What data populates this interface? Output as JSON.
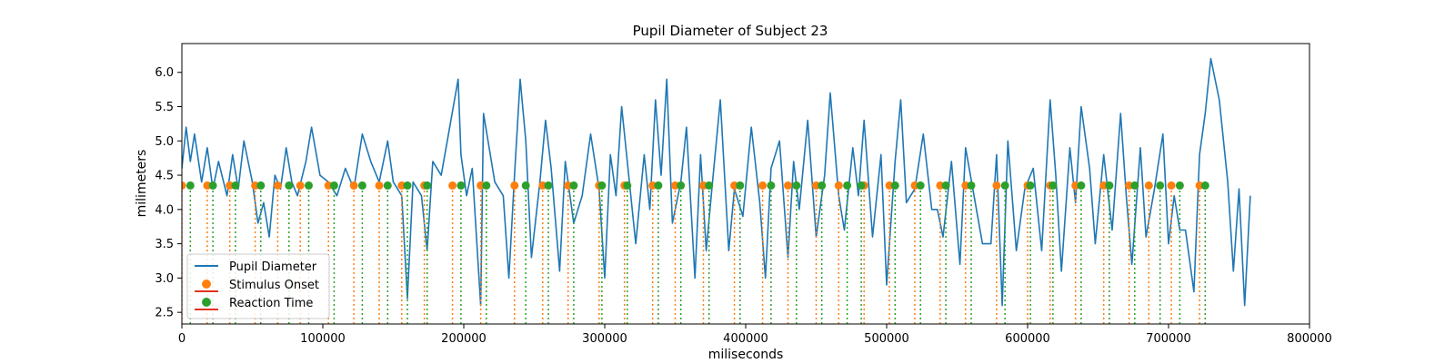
{
  "chart_data": {
    "type": "line",
    "title": "Pupil Diameter of Subject 23",
    "xlabel": "miliseconds",
    "ylabel": "milimeters",
    "xlim": [
      0,
      800000
    ],
    "ylim": [
      2.33,
      6.42
    ],
    "x_ticks": [
      0,
      100000,
      200000,
      300000,
      400000,
      500000,
      600000,
      700000,
      800000
    ],
    "x_tick_labels": [
      "0",
      "100000",
      "200000",
      "300000",
      "400000",
      "500000",
      "600000",
      "700000",
      "800000"
    ],
    "y_ticks": [
      2.5,
      3.0,
      3.5,
      4.0,
      4.5,
      5.0,
      5.5,
      6.0
    ],
    "y_tick_labels": [
      "2.5",
      "3.0",
      "3.5",
      "4.0",
      "4.5",
      "5.0",
      "5.5",
      "6.0"
    ],
    "grid": false,
    "legend": "lower-left",
    "marker_level": 4.35,
    "series": [
      {
        "name": "Pupil Diameter",
        "color": "#1f77b4",
        "x": [
          0,
          3000,
          6000,
          9000,
          14000,
          18000,
          22000,
          26000,
          32000,
          36000,
          40000,
          44000,
          50000,
          54000,
          58000,
          62000,
          66000,
          70000,
          74000,
          78000,
          82000,
          88000,
          92000,
          98000,
          104000,
          110000,
          116000,
          122000,
          128000,
          134000,
          140000,
          146000,
          150000,
          156000,
          160000,
          164000,
          170000,
          174000,
          178000,
          184000,
          190000,
          196000,
          198000,
          202000,
          206000,
          212000,
          214000,
          218000,
          222000,
          228000,
          232000,
          236000,
          240000,
          244000,
          248000,
          254000,
          258000,
          262000,
          268000,
          272000,
          278000,
          284000,
          290000,
          296000,
          300000,
          304000,
          308000,
          312000,
          318000,
          322000,
          328000,
          332000,
          336000,
          340000,
          344000,
          348000,
          354000,
          358000,
          364000,
          368000,
          372000,
          376000,
          382000,
          388000,
          392000,
          398000,
          404000,
          410000,
          414000,
          418000,
          424000,
          430000,
          434000,
          438000,
          444000,
          450000,
          456000,
          460000,
          466000,
          470000,
          476000,
          480000,
          484000,
          490000,
          496000,
          500000,
          506000,
          510000,
          514000,
          520000,
          526000,
          532000,
          536000,
          540000,
          546000,
          552000,
          556000,
          562000,
          568000,
          574000,
          578000,
          582000,
          586000,
          592000,
          598000,
          604000,
          610000,
          616000,
          620000,
          624000,
          630000,
          634000,
          638000,
          644000,
          648000,
          654000,
          660000,
          666000,
          670000,
          674000,
          680000,
          684000,
          690000,
          696000,
          700000,
          704000,
          708000,
          712000,
          718000,
          722000,
          726000,
          730000,
          736000,
          742000,
          746000,
          750000,
          754000,
          758000
        ],
        "values": [
          4.6,
          5.2,
          4.7,
          5.1,
          4.4,
          4.9,
          4.3,
          4.7,
          4.2,
          4.8,
          4.3,
          5.0,
          4.4,
          3.8,
          4.1,
          3.6,
          4.5,
          4.3,
          4.9,
          4.4,
          4.2,
          4.7,
          5.2,
          4.5,
          4.4,
          4.2,
          4.6,
          4.3,
          5.1,
          4.7,
          4.4,
          5.0,
          4.4,
          4.2,
          2.7,
          4.4,
          4.2,
          3.4,
          4.7,
          4.5,
          5.2,
          5.9,
          4.8,
          4.2,
          4.6,
          2.6,
          5.4,
          4.9,
          4.4,
          4.2,
          3.0,
          4.5,
          5.9,
          5.0,
          3.3,
          4.4,
          5.3,
          4.6,
          3.1,
          4.7,
          3.8,
          4.2,
          5.1,
          4.3,
          3.0,
          4.8,
          4.2,
          5.5,
          4.3,
          3.5,
          4.8,
          4.0,
          5.6,
          4.5,
          5.9,
          3.8,
          4.4,
          5.2,
          3.0,
          4.8,
          3.4,
          4.3,
          5.6,
          3.4,
          4.3,
          3.9,
          5.2,
          4.1,
          3.0,
          4.6,
          5.0,
          3.3,
          4.7,
          4.0,
          5.3,
          3.6,
          4.5,
          5.7,
          4.2,
          3.7,
          4.9,
          4.2,
          5.3,
          3.6,
          4.8,
          2.9,
          4.7,
          5.6,
          4.1,
          4.3,
          5.1,
          4.0,
          4.0,
          3.6,
          4.7,
          3.2,
          4.9,
          4.2,
          3.5,
          3.5,
          4.8,
          2.6,
          5.0,
          3.4,
          4.3,
          4.6,
          3.4,
          5.6,
          4.5,
          3.1,
          4.9,
          4.1,
          5.5,
          4.6,
          3.5,
          4.8,
          3.7,
          5.4,
          4.2,
          3.2,
          4.9,
          3.6,
          4.3,
          5.1,
          3.5,
          4.2,
          3.7,
          3.7,
          2.8,
          4.8,
          5.4,
          6.2,
          5.6,
          4.4,
          3.1,
          4.3,
          2.6,
          4.2
        ]
      },
      {
        "name": "Stimulus Onset",
        "color": "#ff7f0e",
        "x": [
          0,
          18000,
          34000,
          52000,
          68000,
          84000,
          104000,
          122000,
          140000,
          156000,
          172000,
          192000,
          212000,
          236000,
          256000,
          274000,
          296000,
          314000,
          334000,
          350000,
          370000,
          392000,
          412000,
          430000,
          450000,
          466000,
          484000,
          502000,
          520000,
          538000,
          556000,
          578000,
          600000,
          616000,
          634000,
          654000,
          672000,
          686000,
          702000,
          722000
        ]
      },
      {
        "name": "Reaction Time",
        "color": "#2ca02c",
        "x": [
          6000,
          22000,
          38000,
          56000,
          76000,
          90000,
          108000,
          128000,
          146000,
          160000,
          174000,
          198000,
          216000,
          244000,
          260000,
          278000,
          298000,
          316000,
          338000,
          354000,
          374000,
          396000,
          418000,
          436000,
          454000,
          472000,
          482000,
          506000,
          524000,
          542000,
          560000,
          584000,
          602000,
          618000,
          638000,
          658000,
          676000,
          694000,
          708000,
          726000
        ]
      }
    ]
  }
}
